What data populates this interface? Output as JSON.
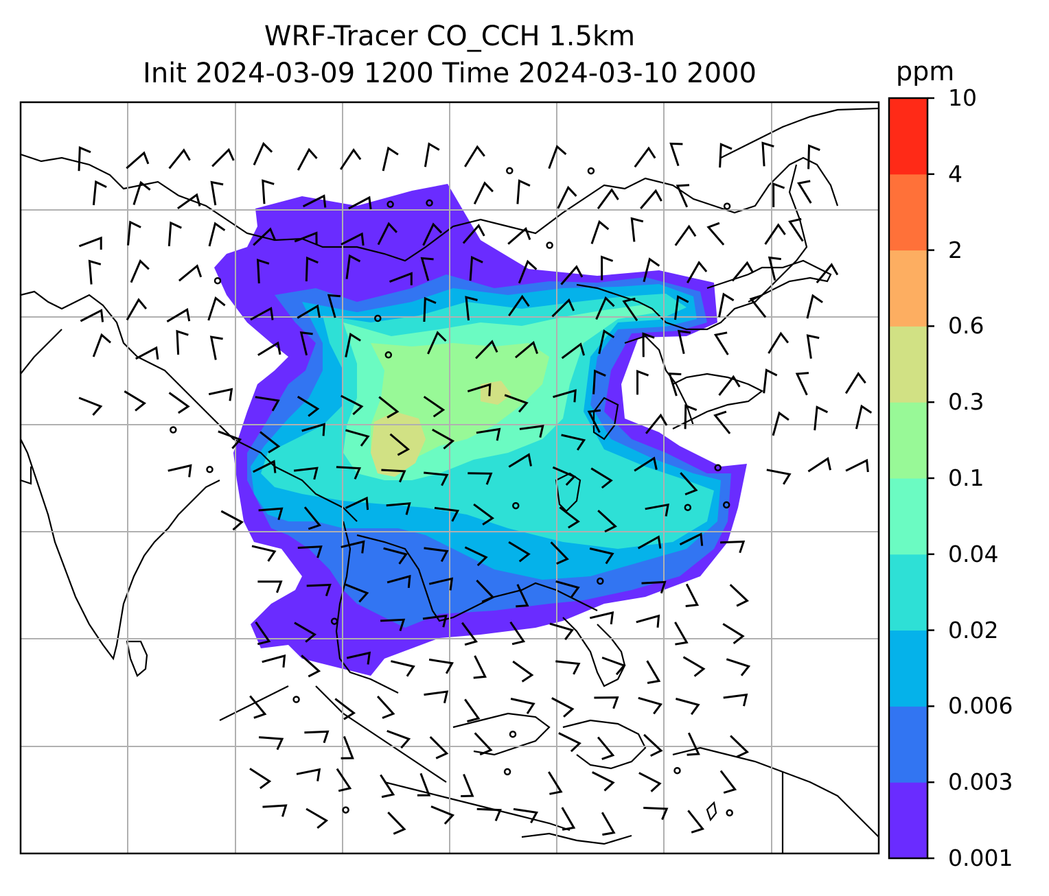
{
  "title": {
    "line1": "WRF-Tracer CO_CCH 1.5km",
    "line2": "Init 2024-03-09 1200 Time 2024-03-10 2000"
  },
  "colorbar": {
    "unit": "ppm",
    "levels": [
      "0.001",
      "0.003",
      "0.006",
      "0.02",
      "0.04",
      "0.1",
      "0.3",
      "0.6",
      "2",
      "4",
      "10"
    ],
    "colors": [
      "#6a2cff",
      "#3275f2",
      "#05b2ea",
      "#2ee0d6",
      "#6bfbc2",
      "#98f997",
      "#d1e184",
      "#fdae61",
      "#ff7139",
      "#ff2a17"
    ]
  },
  "map": {
    "gridlines": true,
    "gridline_color": "#b0b0b0",
    "coastline_color": "#000000",
    "barb_color": "#000000",
    "field": "CO_CCH tracer concentration with wind barbs"
  }
}
